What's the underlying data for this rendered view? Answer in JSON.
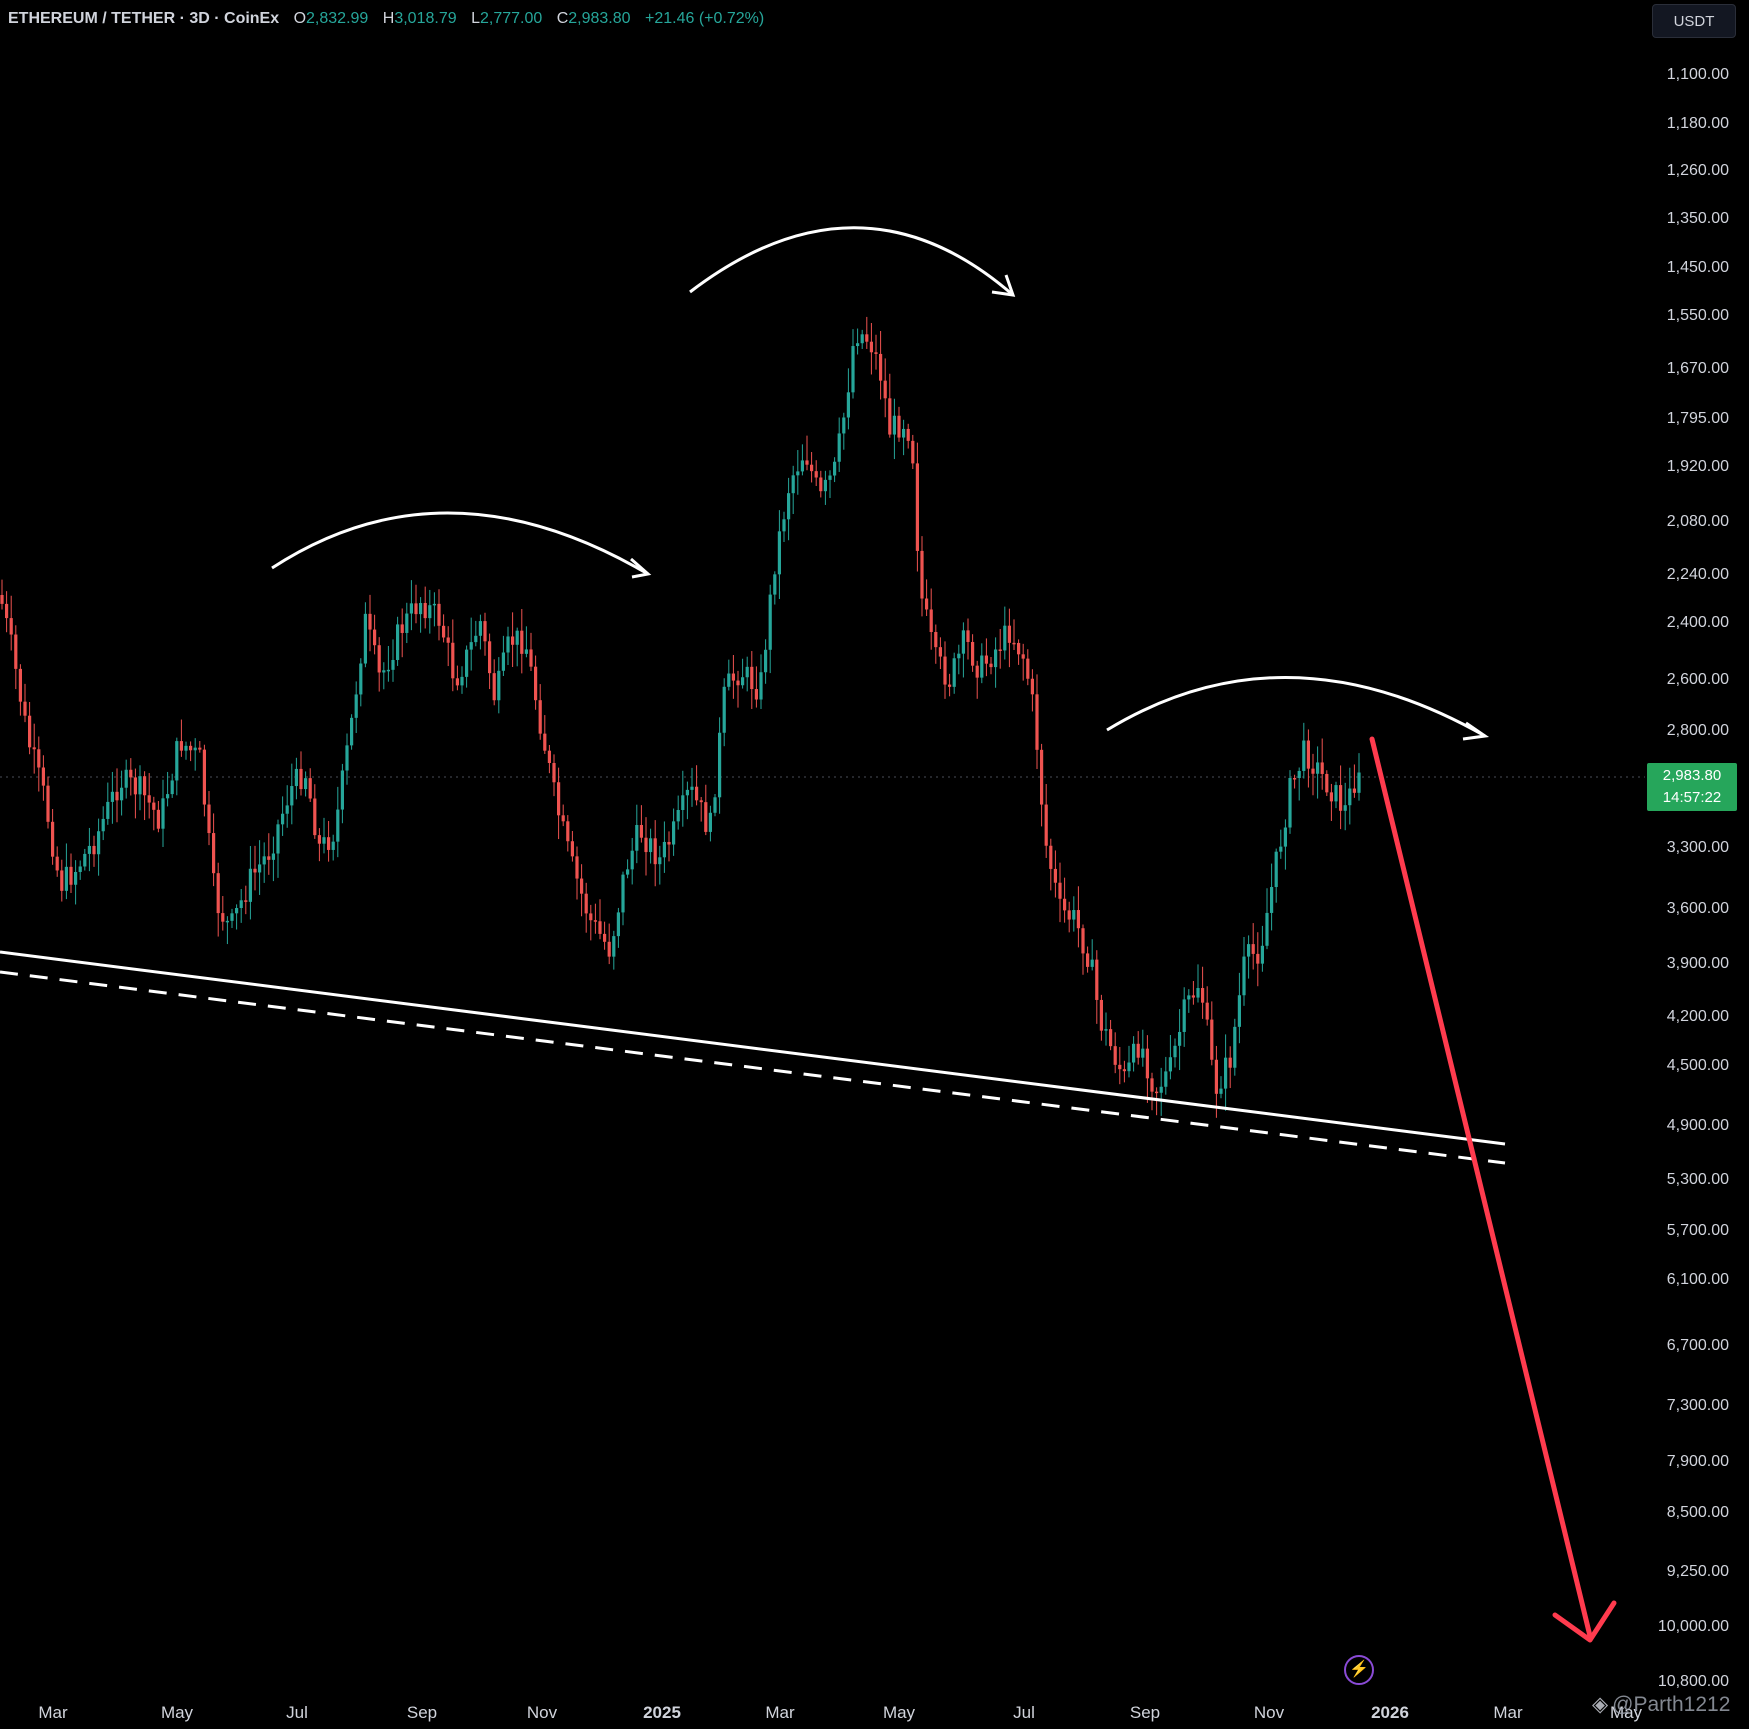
{
  "legend": {
    "symbol": "ETHEREUM / TETHER · 3D · CoinEx",
    "open_label": "O",
    "open": "2,832.99",
    "high_label": "H",
    "high": "3,018.79",
    "low_label": "L",
    "low": "2,777.00",
    "close_label": "C",
    "close": "2,983.80",
    "change": "+21.46 (+0.72%)"
  },
  "currency_button": "USDT",
  "price_tag": {
    "price": "2,983.80",
    "countdown": "14:57:22"
  },
  "colors": {
    "up": "#26a69a",
    "down": "#ef5350",
    "forecast_arrow": "#ff3b4e",
    "trendline": "#ffffff",
    "price_tag": "#26a65b"
  },
  "chart_data": {
    "type": "candlestick",
    "price_axis": {
      "inverted": true,
      "labels": [
        "1,100.00",
        "1,180.00",
        "1,260.00",
        "1,350.00",
        "1,450.00",
        "1,550.00",
        "1,670.00",
        "1,795.00",
        "1,920.00",
        "2,080.00",
        "2,240.00",
        "2,400.00",
        "2,600.00",
        "2,800.00",
        "3,300.00",
        "3,600.00",
        "3,900.00",
        "4,200.00",
        "4,500.00",
        "4,900.00",
        "5,300.00",
        "5,700.00",
        "6,100.00",
        "6,700.00",
        "7,300.00",
        "7,900.00",
        "8,500.00",
        "9,250.00",
        "10,000.00",
        "10,800.00"
      ]
    },
    "time_axis": {
      "labels": [
        {
          "text": "Mar",
          "bold": false
        },
        {
          "text": "May",
          "bold": false
        },
        {
          "text": "Jul",
          "bold": false
        },
        {
          "text": "Sep",
          "bold": false
        },
        {
          "text": "Nov",
          "bold": false
        },
        {
          "text": "2025",
          "bold": true
        },
        {
          "text": "Mar",
          "bold": false
        },
        {
          "text": "May",
          "bold": false
        },
        {
          "text": "Jul",
          "bold": false
        },
        {
          "text": "Sep",
          "bold": false
        },
        {
          "text": "Nov",
          "bold": false
        },
        {
          "text": "2026",
          "bold": true
        },
        {
          "text": "Mar",
          "bold": false
        },
        {
          "text": "May",
          "bold": false
        }
      ]
    },
    "annotations": [
      "arc-arrow-left-shoulder",
      "arc-arrow-head",
      "arc-arrow-right-shoulder",
      "neckline-solid",
      "neckline-dashed",
      "forecast-arrow-red"
    ]
  },
  "watermark": "@Parth1212"
}
